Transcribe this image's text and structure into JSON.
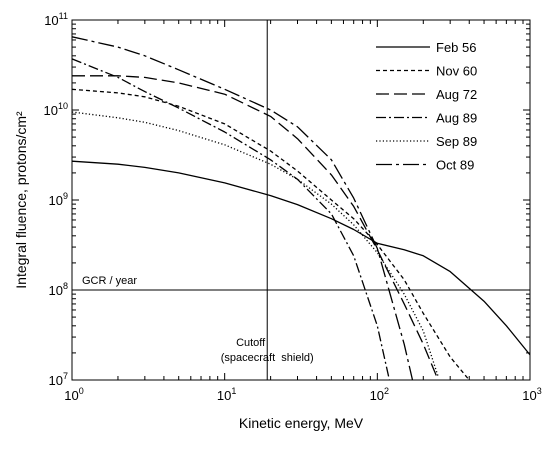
{
  "chart_data": {
    "type": "line",
    "xlabel": "Kinetic energy, MeV",
    "ylabel": "Integral fluence, protons/cm²",
    "xscale": "log",
    "yscale": "log",
    "xlim": [
      1,
      1000
    ],
    "ylim": [
      10000000,
      100000000000
    ],
    "x_ticks": [
      {
        "base": "10",
        "exp": "0",
        "value": 1
      },
      {
        "base": "10",
        "exp": "1",
        "value": 10
      },
      {
        "base": "10",
        "exp": "2",
        "value": 100
      },
      {
        "base": "10",
        "exp": "3",
        "value": 1000
      }
    ],
    "y_ticks": [
      {
        "base": "10",
        "exp": "7",
        "value": 10000000
      },
      {
        "base": "10",
        "exp": "8",
        "value": 100000000
      },
      {
        "base": "10",
        "exp": "9",
        "value": 1000000000
      },
      {
        "base": "10",
        "exp": "10",
        "value": 10000000000
      },
      {
        "base": "10",
        "exp": "11",
        "value": 100000000000
      }
    ],
    "grid": false,
    "legend_position": "top-right",
    "reference_lines": [
      {
        "orientation": "horizontal",
        "value": 100000000,
        "label": "GCR / year"
      },
      {
        "orientation": "vertical",
        "value": 19,
        "label_line1": "Cutoff",
        "label_line2": "(spacecraft  shield)"
      }
    ],
    "series": [
      {
        "name": "Feb 56",
        "dash": "solid",
        "x": [
          1,
          2,
          3,
          5,
          10,
          20,
          30,
          50,
          70,
          100,
          150,
          200,
          300,
          500,
          700,
          1000
        ],
        "y": [
          2700000000,
          2500000000,
          2300000000,
          2000000000,
          1550000000,
          1120000000,
          890000000,
          620000000,
          470000000,
          330000000,
          280000000,
          240000000,
          160000000,
          75000000,
          40000000,
          19000000
        ]
      },
      {
        "name": "Nov 60",
        "dash": "short-dash",
        "x": [
          1,
          2,
          3,
          5,
          10,
          20,
          30,
          50,
          70,
          100,
          150,
          200,
          300,
          400
        ],
        "y": [
          17000000000,
          15500000000,
          14000000000,
          11000000000,
          7000000000,
          3500000000,
          2100000000,
          1000000000,
          620000000,
          320000000,
          130000000,
          55000000,
          18000000,
          10000000
        ]
      },
      {
        "name": "Aug 72",
        "dash": "long-dash",
        "x": [
          1,
          2,
          3,
          5,
          10,
          20,
          30,
          50,
          70,
          100,
          150,
          200,
          250
        ],
        "y": [
          24000000000,
          24000000000,
          23000000000,
          20000000000,
          15000000000,
          8500000000,
          4800000000,
          1900000000,
          850000000,
          280000000,
          70000000,
          25000000,
          10000000
        ]
      },
      {
        "name": "Aug 89",
        "dash": "dash-dot",
        "x": [
          1,
          2,
          3,
          5,
          10,
          20,
          30,
          50,
          70,
          100,
          120
        ],
        "y": [
          37000000000,
          23000000000,
          16000000000,
          10500000000,
          5700000000,
          2800000000,
          1700000000,
          700000000,
          240000000,
          40000000,
          10000000
        ]
      },
      {
        "name": "Sep 89",
        "dash": "dotted",
        "x": [
          1,
          2,
          3,
          5,
          10,
          20,
          30,
          50,
          70,
          100,
          150,
          200,
          250
        ],
        "y": [
          9500000000,
          8200000000,
          7300000000,
          5900000000,
          4100000000,
          2500000000,
          1700000000,
          900000000,
          530000000,
          260000000,
          90000000,
          35000000,
          11000000
        ]
      },
      {
        "name": "Oct 89",
        "dash": "long-dash-dot",
        "x": [
          1,
          2,
          3,
          5,
          10,
          20,
          30,
          50,
          70,
          100,
          150,
          170
        ],
        "y": [
          65000000000,
          50000000000,
          40000000000,
          28000000000,
          17000000000,
          10000000000,
          6500000000,
          2800000000,
          1050000000,
          290000000,
          25000000,
          10000000
        ]
      }
    ]
  }
}
